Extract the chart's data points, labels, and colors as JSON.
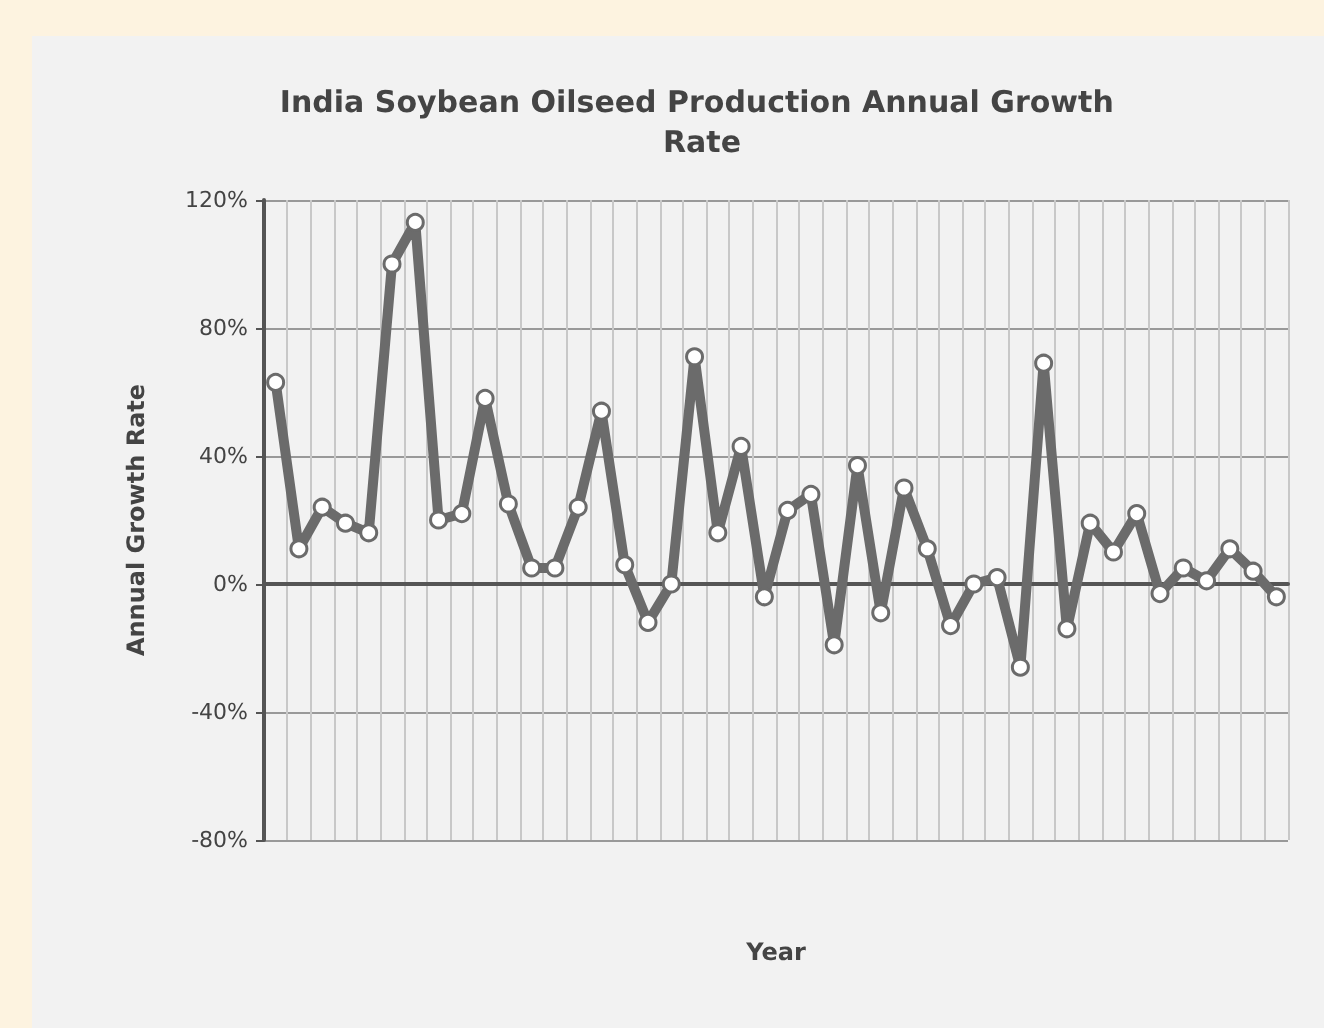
{
  "chart_data": {
    "type": "line",
    "title": "India Soybean Oilseed Production Annual Growth Rate",
    "xlabel": "Year",
    "ylabel": "Annual Growth Rate",
    "categories": [
      null,
      null,
      null,
      null,
      null,
      null,
      null,
      null,
      null,
      null,
      null,
      null,
      null,
      null,
      null,
      null,
      null,
      null,
      null,
      null,
      null,
      null,
      null,
      null,
      null,
      null,
      null,
      null,
      null,
      null,
      null,
      null,
      null,
      null,
      null,
      null,
      null,
      null,
      null,
      null,
      null,
      null,
      null,
      null
    ],
    "series": [
      {
        "color": "#6b6b6b",
        "values": [
          63,
          11,
          24,
          19,
          16,
          100,
          113,
          20,
          22,
          58,
          25,
          5,
          5,
          24,
          54,
          6,
          -12,
          0,
          71,
          16,
          43,
          -4,
          23,
          28,
          -19,
          37,
          -9,
          30,
          11,
          -13,
          0,
          2,
          -26,
          69,
          -14,
          19,
          10,
          22,
          -3,
          5,
          1,
          11,
          4,
          -4
        ]
      }
    ],
    "ylim": [
      -80,
      120
    ],
    "yticks": [
      {
        "value": -80,
        "label": "-80%"
      },
      {
        "value": -40,
        "label": "-40%"
      },
      {
        "value": 0,
        "label": "0%"
      },
      {
        "value": 40,
        "label": "40%"
      },
      {
        "value": 80,
        "label": "80%"
      },
      {
        "value": 120,
        "label": "120%"
      }
    ],
    "grid": true,
    "marker": "circle",
    "line_style": "solid"
  }
}
